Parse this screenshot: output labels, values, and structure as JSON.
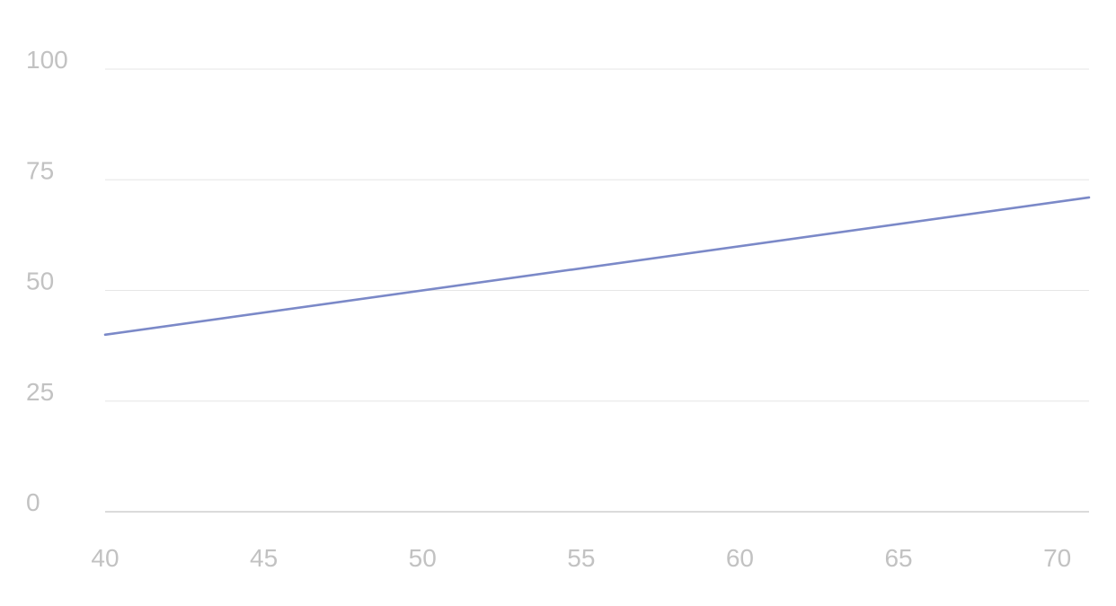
{
  "chart_data": {
    "type": "line",
    "title": "",
    "xlabel": "",
    "ylabel": "",
    "xlim": [
      40,
      71
    ],
    "ylim": [
      0,
      100
    ],
    "x_ticks": [
      40,
      45,
      50,
      55,
      60,
      65,
      70
    ],
    "y_ticks": [
      0,
      25,
      50,
      75,
      100
    ],
    "grid": true,
    "legend": "none",
    "series": [
      {
        "color": "#7b89c8",
        "x": [
          40,
          71
        ],
        "y": [
          40,
          71
        ]
      }
    ]
  }
}
